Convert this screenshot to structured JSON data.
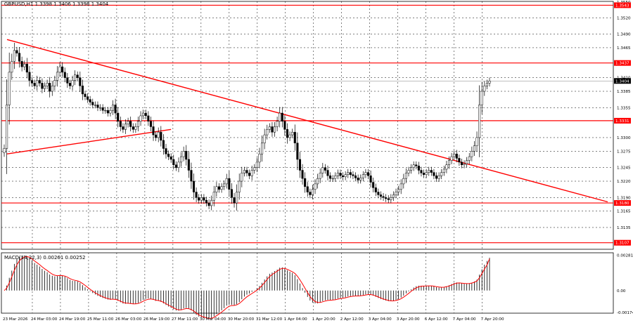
{
  "chart_title": "GBPUSD,H1  1.3398 1.3406 1.3398 1.3404",
  "macd_label": "MACD(14,22,3) 0.00261 0.00252",
  "colors": {
    "background": "#ffffff",
    "candle": "#000000",
    "level_line": "#ff0000",
    "trend_line": "#ff0000",
    "macd_signal": "#ff0000",
    "macd_hist": "#000000",
    "grid": "#000000",
    "price_marker_bg": "#000000",
    "level_tag_bg": "#ff0000",
    "label_text": "#ffffff"
  },
  "chart_data": {
    "type": "candlestick",
    "symbol": "GBPUSD",
    "timeframe": "H1",
    "ohlc_last": {
      "open": 1.3398,
      "high": 1.3406,
      "low": 1.3398,
      "close": 1.3404
    },
    "current_price_label": "1.3404",
    "ylim": [
      1.3095,
      1.355
    ],
    "y_ticks": [
      "1.3520",
      "1.3490",
      "1.3465",
      "1.3410",
      "1.3385",
      "1.3355",
      "1.3300",
      "1.3275",
      "1.3245",
      "1.3220",
      "1.3190",
      "1.3165",
      "1.3135"
    ],
    "y_tick_values": [
      1.352,
      1.349,
      1.3465,
      1.341,
      1.3385,
      1.3355,
      1.33,
      1.3275,
      1.3245,
      1.322,
      1.319,
      1.3165,
      1.3135
    ],
    "top_tick": "1.3550",
    "x_ticks": [
      "23 Mar 2026",
      "24 Mar 03:00",
      "24 Mar 19:00",
      "25 Mar 11:00",
      "26 Mar 03:00",
      "26 Mar 19:00",
      "27 Mar 11:00",
      "30 Mar 04:00",
      "30 Mar 20:00",
      "31 Mar 12:00",
      "1 Apr 04:00",
      "1 Apr 20:00",
      "2 Apr 12:00",
      "3 Apr 04:00",
      "3 Apr 20:00",
      "6 Apr 12:00",
      "7 Apr 04:00",
      "7 Apr 20:00"
    ],
    "horizontal_levels": [
      {
        "label": "1.3543",
        "value": 1.3543
      },
      {
        "label": "1.3437",
        "value": 1.3437
      },
      {
        "label": "1.3331",
        "value": 1.3331
      },
      {
        "label": "1.3180",
        "value": 1.318
      },
      {
        "label": "1.3107",
        "value": 1.3107
      }
    ],
    "trend_lines": [
      {
        "name": "descending",
        "points": [
          [
            0,
            1.348
          ],
          [
            221,
            1.321
          ]
        ]
      },
      {
        "name": "ascending",
        "points": [
          [
            0,
            1.327
          ],
          [
            66,
            1.3315
          ]
        ]
      }
    ],
    "closes": [
      1.328,
      1.336,
      1.342,
      1.344,
      1.346,
      1.3455,
      1.344,
      1.343,
      1.3435,
      1.342,
      1.3405,
      1.34,
      1.3395,
      1.3405,
      1.34,
      1.339,
      1.3395,
      1.34,
      1.3385,
      1.3395,
      1.3405,
      1.342,
      1.343,
      1.342,
      1.341,
      1.34,
      1.3395,
      1.3405,
      1.3415,
      1.341,
      1.3395,
      1.338,
      1.3375,
      1.337,
      1.3365,
      1.336,
      1.336,
      1.3355,
      1.3355,
      1.335,
      1.335,
      1.3345,
      1.335,
      1.336,
      1.3345,
      1.333,
      1.332,
      1.3315,
      1.3325,
      1.333,
      1.332,
      1.3315,
      1.332,
      1.333,
      1.334,
      1.3345,
      1.334,
      1.333,
      1.332,
      1.3305,
      1.33,
      1.331,
      1.3295,
      1.328,
      1.327,
      1.3265,
      1.326,
      1.325,
      1.3245,
      1.3255,
      1.3265,
      1.3275,
      1.326,
      1.324,
      1.322,
      1.32,
      1.319,
      1.3185,
      1.319,
      1.3185,
      1.318,
      1.3175,
      1.3185,
      1.32,
      1.321,
      1.3205,
      1.321,
      1.3215,
      1.3225,
      1.3205,
      1.319,
      1.318,
      1.32,
      1.322,
      1.3235,
      1.324,
      1.3235,
      1.323,
      1.324,
      1.3245,
      1.3255,
      1.327,
      1.329,
      1.3305,
      1.3315,
      1.332,
      1.331,
      1.332,
      1.333,
      1.3345,
      1.333,
      1.3315,
      1.33,
      1.3305,
      1.331,
      1.329,
      1.326,
      1.324,
      1.3225,
      1.321,
      1.32,
      1.3195,
      1.3205,
      1.3215,
      1.3225,
      1.3235,
      1.3245,
      1.324,
      1.323,
      1.3225,
      1.3225,
      1.323,
      1.3235,
      1.323,
      1.3228,
      1.3232,
      1.3236,
      1.3232,
      1.323,
      1.3226,
      1.3222,
      1.3226,
      1.3232,
      1.3236,
      1.323,
      1.3218,
      1.3208,
      1.32,
      1.3195,
      1.3192,
      1.319,
      1.3188,
      1.3186,
      1.319,
      1.3195,
      1.32,
      1.3205,
      1.3215,
      1.3225,
      1.3235,
      1.324,
      1.3245,
      1.325,
      1.3248,
      1.324,
      1.3235,
      1.3232,
      1.3236,
      1.324,
      1.3236,
      1.323,
      1.3225,
      1.323,
      1.3236,
      1.3242,
      1.325,
      1.3258,
      1.3265,
      1.327,
      1.3262,
      1.3255,
      1.325,
      1.3252,
      1.3258,
      1.3265,
      1.3275,
      1.3285,
      1.33,
      1.336,
      1.3385,
      1.3395,
      1.34,
      1.3404
    ],
    "macd": {
      "name": "MACD(14,22,3)",
      "value": 0.00261,
      "signal": 0.00252,
      "ylim": [
        -0.0018,
        0.003
      ],
      "y_ticks": [
        "0.00281",
        "0.00",
        "-0.00174"
      ],
      "y_tick_values": [
        0.00281,
        0.0,
        -0.00174
      ]
    }
  }
}
